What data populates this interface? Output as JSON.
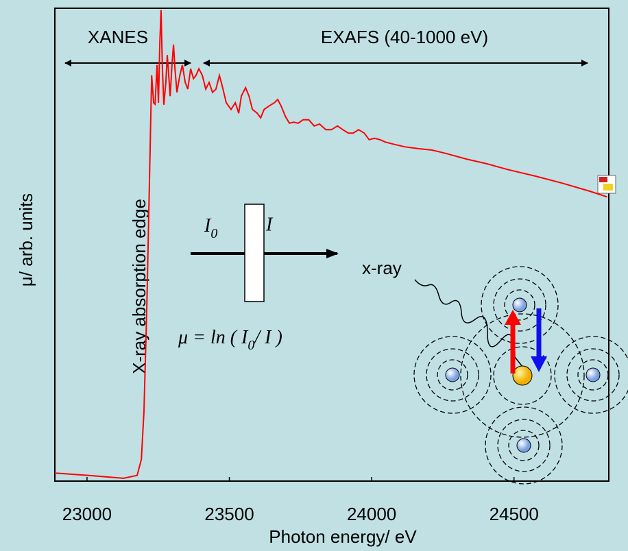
{
  "chart_data": {
    "type": "line",
    "x_label": "Photon energy/ eV",
    "y_label": "μ/ arb. units",
    "annotations": {
      "xanes": "XANES",
      "exafs": "EXAFS (40-1000 eV)",
      "edge": "X-ray absorption edge",
      "xray": "x-ray",
      "beam_in": [
        "I",
        "0"
      ],
      "beam_out": "I",
      "equation": [
        "μ = ln ( I",
        "0",
        "/ I )"
      ]
    },
    "color": "#ff0000",
    "xlim": [
      22887,
      24833
    ],
    "ylim": [
      0,
      100
    ],
    "xticks": [
      23000,
      23500,
      24000,
      24500
    ],
    "x": [
      22887,
      23007,
      23128,
      23176,
      23191,
      23200,
      23210,
      23220,
      23227,
      23234,
      23239,
      23246,
      23251,
      23256,
      23260,
      23265,
      23270,
      23277,
      23282,
      23287,
      23292,
      23299,
      23304,
      23309,
      23316,
      23326,
      23335,
      23345,
      23354,
      23364,
      23374,
      23383,
      23393,
      23405,
      23417,
      23429,
      23441,
      23453,
      23465,
      23475,
      23489,
      23506,
      23521,
      23533,
      23542,
      23557,
      23569,
      23581,
      23598,
      23610,
      23622,
      23639,
      23658,
      23670,
      23682,
      23697,
      23711,
      23726,
      23742,
      23759,
      23779,
      23798,
      23817,
      23839,
      23858,
      23880,
      23899,
      23918,
      23935,
      23954,
      23974,
      23991,
      24010,
      24029,
      24048,
      24080,
      24116,
      24164,
      24212,
      24260,
      24333,
      24405,
      24477,
      24574,
      24670,
      24766,
      24827
    ],
    "values": [
      1.7,
      1.2,
      0.6,
      1.2,
      4.6,
      14.8,
      36.5,
      65.5,
      85.8,
      80.0,
      79.7,
      88.0,
      80.0,
      93.0,
      99.6,
      87.2,
      79.6,
      84.3,
      90.1,
      85.8,
      81.4,
      88.6,
      92.3,
      87.2,
      82.2,
      85.8,
      88.0,
      84.3,
      82.9,
      87.2,
      85.1,
      85.8,
      87.2,
      85.8,
      82.9,
      84.3,
      82.2,
      82.9,
      85.8,
      83.6,
      80.0,
      78.6,
      80.0,
      77.8,
      81.4,
      83.2,
      81.4,
      78.6,
      77.8,
      76.8,
      78.6,
      79.3,
      80.0,
      80.7,
      79.3,
      77.1,
      75.7,
      75.9,
      75.7,
      76.4,
      76.4,
      75.1,
      75.5,
      74.3,
      74.3,
      75.1,
      74.3,
      73.6,
      73.6,
      74.3,
      73.6,
      72.2,
      72.5,
      72.2,
      71.7,
      71.2,
      70.7,
      70.3,
      70.0,
      69.3,
      68.1,
      67.1,
      65.9,
      64.5,
      63.0,
      61.3,
      60.1
    ]
  }
}
